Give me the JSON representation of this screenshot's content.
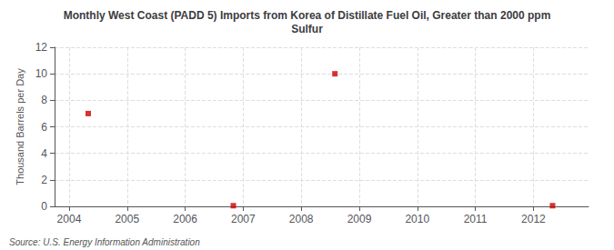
{
  "chart_data": {
    "type": "scatter",
    "title": "Monthly West Coast (PADD 5) Imports from Korea of Distillate Fuel Oil, Greater than 2000 ppm\nSulfur",
    "ylabel": "Thousand Barrels per Day",
    "annotation": "Source: U.S. Energy Information Administration",
    "x": [
      2004.33,
      2006.83,
      2008.58,
      2012.33
    ],
    "values": [
      7.0,
      0.05,
      10.0,
      0.05
    ],
    "color": "#cc0000",
    "marker": "square",
    "xlim": [
      2003.75,
      2012.95
    ],
    "ylim": [
      0,
      12
    ],
    "xticks": [
      2004,
      2005,
      2006,
      2007,
      2008,
      2009,
      2010,
      2011,
      2012
    ],
    "yticks": [
      0,
      2,
      4,
      6,
      8,
      10,
      12
    ],
    "grid": true
  }
}
